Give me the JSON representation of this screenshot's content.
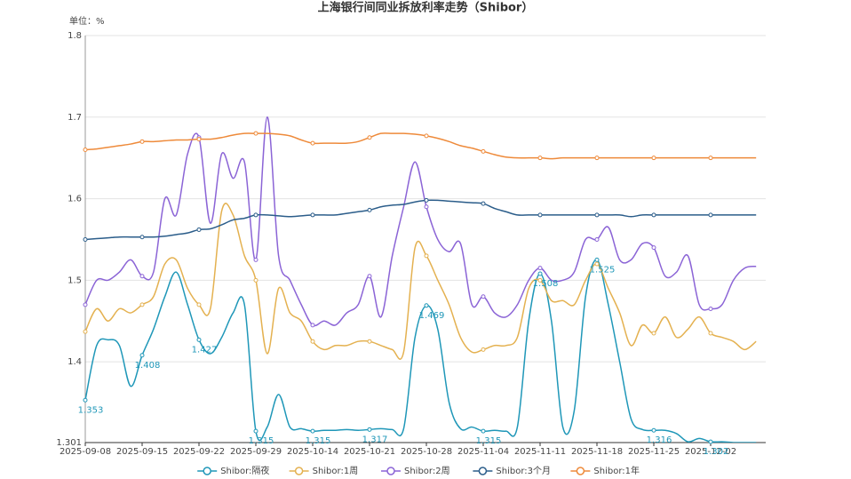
{
  "chart_data": {
    "type": "line",
    "title": "上海银行间同业拆放利率走势（Shibor）",
    "y_unit_label": "单位：%",
    "categories": [
      "2025-09-08",
      null,
      null,
      null,
      null,
      "2025-09-15",
      null,
      null,
      null,
      null,
      "2025-09-22",
      null,
      null,
      null,
      null,
      "2025-09-29",
      null,
      null,
      null,
      null,
      "2025-10-14",
      null,
      null,
      null,
      null,
      "2025-10-21",
      null,
      null,
      null,
      null,
      "2025-10-28",
      null,
      null,
      null,
      null,
      "2025-11-04",
      null,
      null,
      null,
      null,
      "2025-11-11",
      null,
      null,
      null,
      null,
      "2025-11-18",
      null,
      null,
      null,
      null,
      "2025-11-25",
      null,
      null,
      null,
      null,
      "2025-12-02",
      null,
      null,
      null,
      null
    ],
    "ylim": [
      1.301,
      1.8
    ],
    "yticks": [
      1.301,
      1.4,
      1.5,
      1.6,
      1.7,
      1.8
    ],
    "grid": true,
    "legend": "bottom",
    "smooth": true,
    "series": [
      {
        "name": "Shibor:隔夜",
        "color": "#1f97b8",
        "show_labels": true,
        "values": [
          1.353,
          1.42,
          1.427,
          1.42,
          1.37,
          1.408,
          1.44,
          1.48,
          1.51,
          1.47,
          1.427,
          1.41,
          1.43,
          1.46,
          1.47,
          1.315,
          1.32,
          1.36,
          1.32,
          1.318,
          1.315,
          1.316,
          1.316,
          1.317,
          1.316,
          1.317,
          1.318,
          1.317,
          1.318,
          1.43,
          1.469,
          1.44,
          1.35,
          1.318,
          1.32,
          1.315,
          1.316,
          1.315,
          1.32,
          1.45,
          1.508,
          1.45,
          1.32,
          1.34,
          1.48,
          1.525,
          1.47,
          1.4,
          1.33,
          1.317,
          1.316,
          1.316,
          1.312,
          1.302,
          1.306,
          1.302,
          1.302,
          1.301,
          1.301,
          1.301
        ]
      },
      {
        "name": "Shibor:1周",
        "color": "#e4b150",
        "values": [
          1.437,
          1.465,
          1.45,
          1.465,
          1.46,
          1.47,
          1.48,
          1.52,
          1.525,
          1.49,
          1.47,
          1.465,
          1.585,
          1.58,
          1.53,
          1.5,
          1.41,
          1.49,
          1.46,
          1.45,
          1.425,
          1.415,
          1.42,
          1.42,
          1.425,
          1.425,
          1.42,
          1.415,
          1.412,
          1.54,
          1.53,
          1.5,
          1.47,
          1.43,
          1.412,
          1.415,
          1.42,
          1.42,
          1.43,
          1.49,
          1.5,
          1.475,
          1.475,
          1.47,
          1.5,
          1.52,
          1.49,
          1.46,
          1.42,
          1.445,
          1.435,
          1.455,
          1.43,
          1.44,
          1.455,
          1.435,
          1.43,
          1.425,
          1.415,
          1.425
        ]
      },
      {
        "name": "Shibor:2周",
        "color": "#8b64d6",
        "values": [
          1.47,
          1.5,
          1.5,
          1.51,
          1.525,
          1.505,
          1.51,
          1.6,
          1.58,
          1.655,
          1.675,
          1.57,
          1.655,
          1.625,
          1.645,
          1.525,
          1.7,
          1.53,
          1.5,
          1.47,
          1.445,
          1.45,
          1.445,
          1.46,
          1.47,
          1.505,
          1.455,
          1.53,
          1.59,
          1.645,
          1.59,
          1.55,
          1.535,
          1.545,
          1.47,
          1.48,
          1.46,
          1.455,
          1.47,
          1.5,
          1.515,
          1.5,
          1.5,
          1.51,
          1.55,
          1.55,
          1.565,
          1.525,
          1.525,
          1.545,
          1.54,
          1.505,
          1.51,
          1.53,
          1.47,
          1.465,
          1.47,
          1.5,
          1.515,
          1.517
        ]
      },
      {
        "name": "Shibor:3个月",
        "color": "#2b5d8a",
        "values": [
          1.55,
          1.551,
          1.552,
          1.553,
          1.553,
          1.553,
          1.553,
          1.554,
          1.556,
          1.558,
          1.562,
          1.563,
          1.568,
          1.574,
          1.576,
          1.58,
          1.58,
          1.579,
          1.578,
          1.579,
          1.58,
          1.58,
          1.58,
          1.582,
          1.584,
          1.586,
          1.59,
          1.592,
          1.593,
          1.596,
          1.598,
          1.598,
          1.597,
          1.596,
          1.595,
          1.594,
          1.588,
          1.584,
          1.58,
          1.58,
          1.58,
          1.58,
          1.58,
          1.58,
          1.58,
          1.58,
          1.58,
          1.58,
          1.578,
          1.58,
          1.58,
          1.58,
          1.58,
          1.58,
          1.58,
          1.58,
          1.58,
          1.58,
          1.58,
          1.58
        ]
      },
      {
        "name": "Shibor:1年",
        "color": "#ee8a3a",
        "values": [
          1.66,
          1.661,
          1.663,
          1.665,
          1.667,
          1.67,
          1.67,
          1.671,
          1.672,
          1.672,
          1.673,
          1.673,
          1.675,
          1.678,
          1.68,
          1.68,
          1.68,
          1.679,
          1.677,
          1.672,
          1.668,
          1.668,
          1.668,
          1.668,
          1.67,
          1.675,
          1.68,
          1.68,
          1.68,
          1.679,
          1.677,
          1.674,
          1.67,
          1.665,
          1.662,
          1.658,
          1.654,
          1.651,
          1.65,
          1.65,
          1.65,
          1.649,
          1.65,
          1.65,
          1.65,
          1.65,
          1.65,
          1.65,
          1.65,
          1.65,
          1.65,
          1.65,
          1.65,
          1.65,
          1.65,
          1.65,
          1.65,
          1.65,
          1.65,
          1.65
        ]
      }
    ]
  }
}
